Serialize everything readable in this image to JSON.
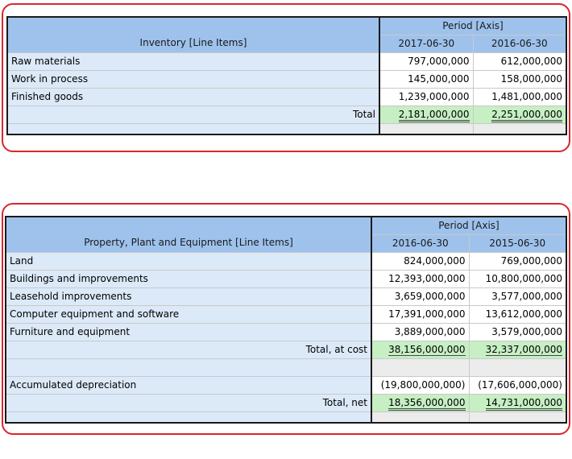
{
  "inventory": {
    "line_items_label": "Inventory [Line Items]",
    "axis_label": "Period [Axis]",
    "periods": [
      "2017-06-30",
      "2016-06-30"
    ],
    "rows": [
      {
        "label": "Raw materials",
        "values": [
          "797,000,000",
          "612,000,000"
        ]
      },
      {
        "label": "Work in process",
        "values": [
          "145,000,000",
          "158,000,000"
        ]
      },
      {
        "label": "Finished goods",
        "values": [
          "1,239,000,000",
          "1,481,000,000"
        ]
      }
    ],
    "total": {
      "label": "Total",
      "values": [
        "2,181,000,000",
        "2,251,000,000"
      ]
    }
  },
  "ppe": {
    "line_items_label": "Property, Plant and Equipment [Line Items]",
    "axis_label": "Period [Axis]",
    "periods": [
      "2016-06-30",
      "2015-06-30"
    ],
    "rows": [
      {
        "label": "Land",
        "values": [
          "824,000,000",
          "769,000,000"
        ]
      },
      {
        "label": "Buildings and improvements",
        "values": [
          "12,393,000,000",
          "10,800,000,000"
        ]
      },
      {
        "label": "Leasehold improvements",
        "values": [
          "3,659,000,000",
          "3,577,000,000"
        ]
      },
      {
        "label": "Computer equipment and software",
        "values": [
          "17,391,000,000",
          "13,612,000,000"
        ]
      },
      {
        "label": "Furniture and equipment",
        "values": [
          "3,889,000,000",
          "3,579,000,000"
        ]
      }
    ],
    "total_at_cost": {
      "label": "Total, at cost",
      "values": [
        "38,156,000,000",
        "32,337,000,000"
      ]
    },
    "accumulated_depreciation": {
      "label": "Accumulated depreciation",
      "values": [
        "(19,800,000,000)",
        "(17,606,000,000)"
      ]
    },
    "total_net": {
      "label": "Total, net",
      "values": [
        "18,356,000,000",
        "14,731,000,000"
      ]
    }
  }
}
